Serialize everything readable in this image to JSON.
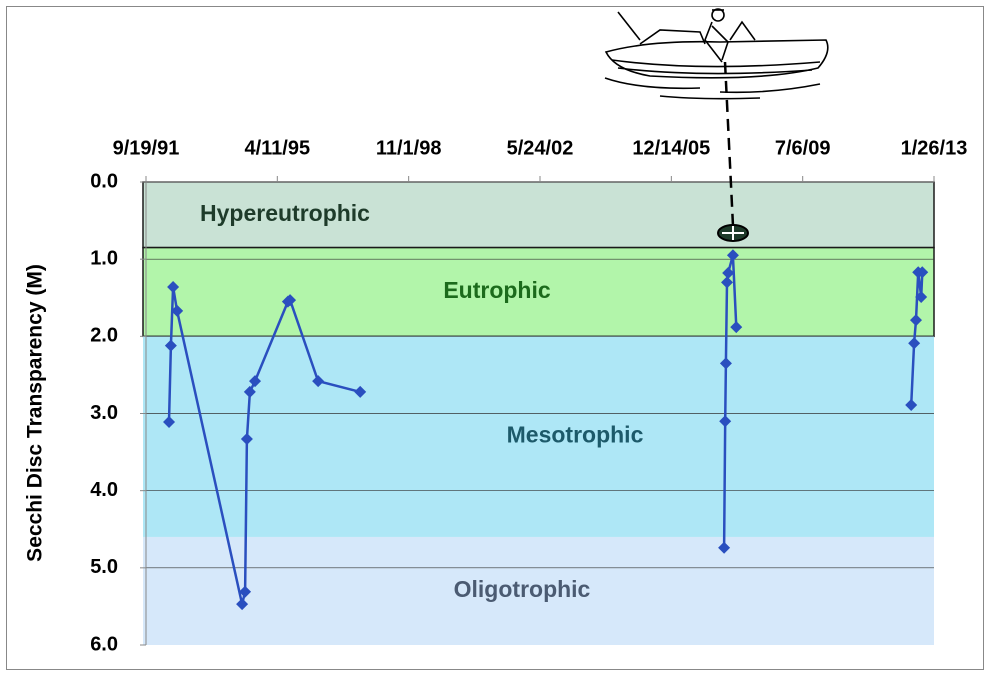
{
  "chart_data": {
    "type": "line",
    "y_label": "Secchi Disc Transparency (M)",
    "xlim": [
      1991.716,
      2013.068
    ],
    "xticks": [
      {
        "value": 1991.716,
        "label": "9/19/91"
      },
      {
        "value": 1995.274,
        "label": "4/11/95"
      },
      {
        "value": 1998.833,
        "label": "11/1/98"
      },
      {
        "value": 2002.392,
        "label": "5/24/02"
      },
      {
        "value": 2005.951,
        "label": "12/14/05"
      },
      {
        "value": 2009.51,
        "label": "7/6/09"
      },
      {
        "value": 2013.068,
        "label": "1/26/13"
      }
    ],
    "ylim": [
      0,
      6
    ],
    "y_inverted": true,
    "yticks": [
      {
        "value": 0,
        "label": "0.0"
      },
      {
        "value": 1,
        "label": "1.0"
      },
      {
        "value": 2,
        "label": "2.0"
      },
      {
        "value": 3,
        "label": "3.0"
      },
      {
        "value": 4,
        "label": "4.0"
      },
      {
        "value": 5,
        "label": "5.0"
      },
      {
        "value": 6,
        "label": "6.0"
      }
    ],
    "grid": true,
    "zones": [
      {
        "label": "Hypereutrophic",
        "from": 0,
        "to": 0.85,
        "color": "#c9e2d5",
        "text_color": "#1e3b2a"
      },
      {
        "label": "Eutrophic",
        "from": 0.85,
        "to": 2.0,
        "color": "#b2f5aa",
        "text_color": "#1c6b1c"
      },
      {
        "label": "Mesotrophic",
        "from": 2.0,
        "to": 4.6,
        "color": "#aee7f6",
        "text_color": "#1d5a6a"
      },
      {
        "label": "Oligotrophic",
        "from": 4.6,
        "to": 6.0,
        "color": "#d6e8fa",
        "text_color": "#4b5b72"
      }
    ],
    "series": [
      {
        "color": "#2a4fbf",
        "x": [
          1992.34,
          1992.39,
          1992.45,
          1992.56,
          1994.32,
          1994.4,
          1994.45,
          1994.53,
          1994.67,
          1995.56,
          1995.62,
          1996.38,
          1997.52,
          null,
          2007.38,
          2007.41,
          2007.43,
          2007.46,
          2007.49,
          2007.62,
          2007.71,
          null,
          2012.45,
          2012.53,
          2012.58,
          2012.64,
          2012.72,
          2012.75
        ],
        "values": [
          3.11,
          2.12,
          1.36,
          1.67,
          5.47,
          5.31,
          3.33,
          2.72,
          2.58,
          1.55,
          1.53,
          2.58,
          2.72,
          null,
          4.74,
          3.1,
          2.35,
          1.3,
          1.18,
          0.95,
          1.88,
          null,
          2.89,
          2.09,
          1.79,
          1.17,
          1.49,
          1.17
        ]
      }
    ]
  }
}
